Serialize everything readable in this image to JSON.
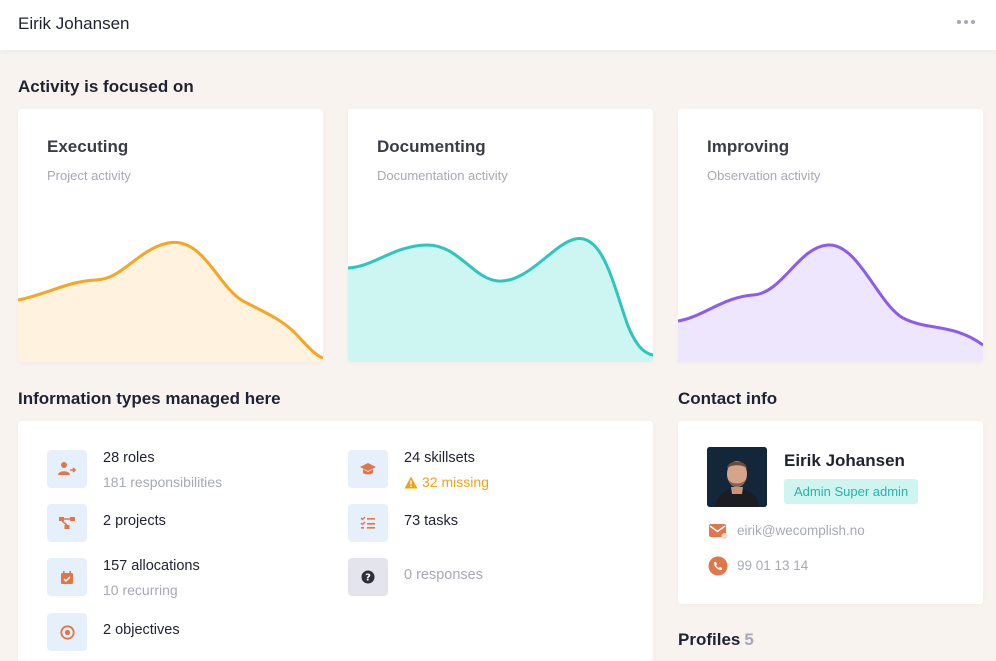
{
  "header": {
    "title": "Eirik Johansen",
    "more_icon": "more-horizontal-icon"
  },
  "activity": {
    "section_title": "Activity is focused on",
    "cards": [
      {
        "title": "Executing",
        "subtitle": "Project activity",
        "stroke": "#f5a623",
        "fill": "#fff2df"
      },
      {
        "title": "Documenting",
        "subtitle": "Documentation activity",
        "stroke": "#2cc6bd",
        "fill": "#cdf5f1"
      },
      {
        "title": "Improving",
        "subtitle": "Observation activity",
        "stroke": "#8b5cf0",
        "fill": "#eee6fc"
      }
    ]
  },
  "info": {
    "section_title": "Information types managed here",
    "items": [
      {
        "main": "28 roles",
        "sub": "181 responsibilities",
        "icon": "user-roles-icon"
      },
      {
        "main": "24 skillsets",
        "sub": "32 missing",
        "icon": "graduation-cap-icon",
        "warn_icon": "warning-icon"
      },
      {
        "main": "2 projects",
        "sub": "",
        "icon": "project-flow-icon"
      },
      {
        "main": "73 tasks",
        "sub": "",
        "icon": "task-list-icon"
      },
      {
        "main": "157 allocations",
        "sub": "10 recurring",
        "icon": "calendar-check-icon"
      },
      {
        "main": "0 responses",
        "sub": "",
        "icon": "question-icon"
      },
      {
        "main": "2 objectives",
        "sub": "",
        "icon": "target-icon"
      }
    ]
  },
  "contact": {
    "section_title": "Contact info",
    "name": "Eirik Johansen",
    "badge": "Admin Super admin",
    "email": "eirik@wecomplish.no",
    "phone": "99 01 13 14",
    "email_icon": "mail-icon",
    "phone_icon": "phone-icon"
  },
  "profiles": {
    "label": "Profiles",
    "count": "5"
  },
  "colors": {
    "accent_orange": "#e0764a",
    "warning": "#f2a216",
    "teal_badge": "#26b4a7"
  }
}
